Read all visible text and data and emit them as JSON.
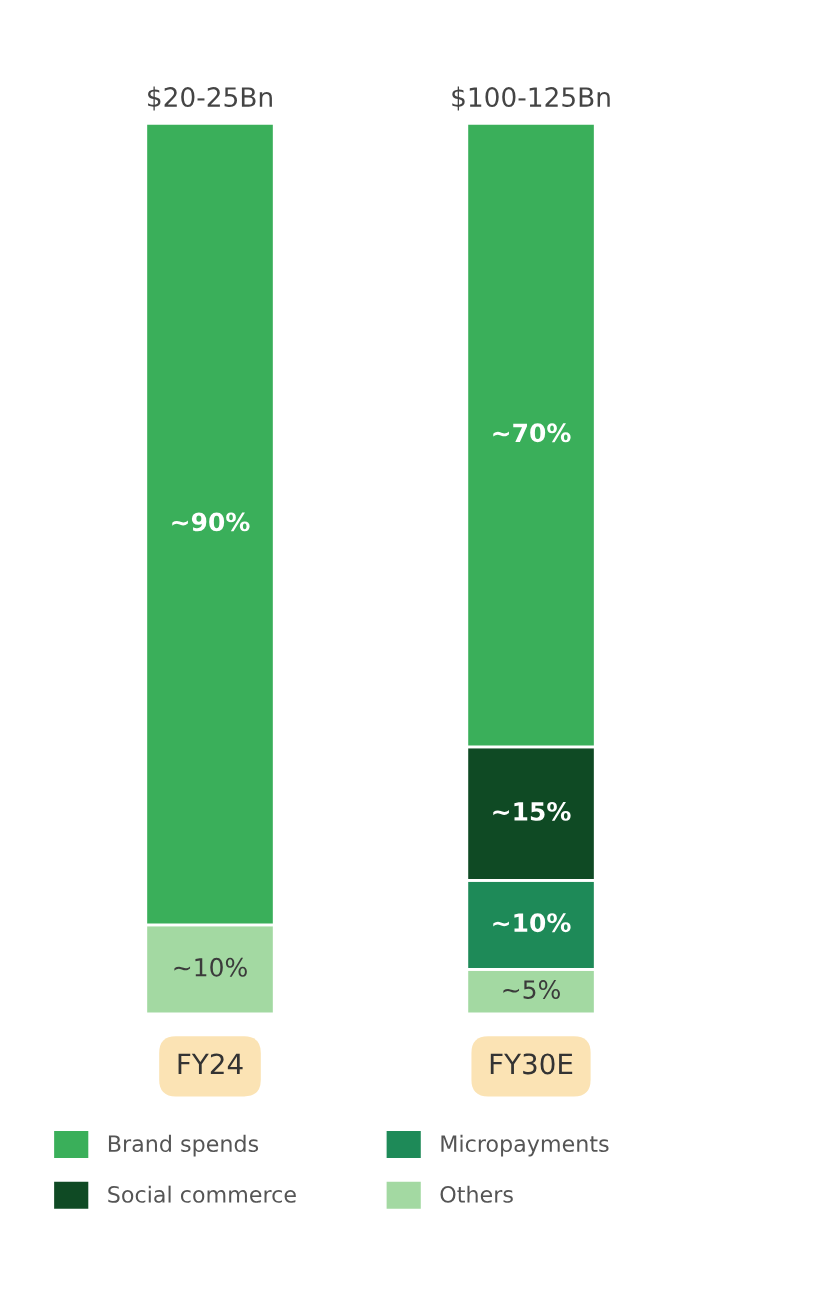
{
  "chart_data": {
    "type": "bar",
    "stacked": true,
    "categories": [
      "FY24",
      "FY30E"
    ],
    "series": [
      {
        "name": "Others",
        "color": "#a3d9a2",
        "values": [
          10,
          5
        ],
        "value_labels": [
          "~10%",
          "~5%"
        ]
      },
      {
        "name": "Micropayments",
        "color": "#1e8a58",
        "values": [
          null,
          10
        ],
        "value_labels": [
          null,
          "~10%"
        ]
      },
      {
        "name": "Social commerce",
        "color": "#0f4a24",
        "values": [
          null,
          15
        ],
        "value_labels": [
          null,
          "~15%"
        ]
      },
      {
        "name": "Brand spends",
        "color": "#3aaf5a",
        "values": [
          90,
          70
        ],
        "value_labels": [
          "~90%",
          "~70%"
        ]
      }
    ],
    "totals": [
      "$20-25Bn",
      "$100-125Bn"
    ],
    "legend": "bottom"
  }
}
